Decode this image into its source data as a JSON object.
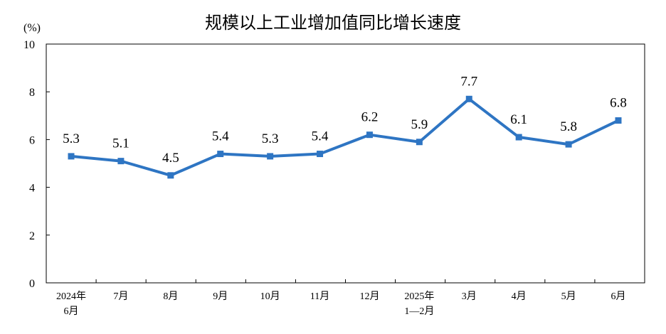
{
  "chart_data": {
    "type": "line",
    "title": "规模以上工业增加值同比增长速度",
    "ylabel": "(%)",
    "ylim": [
      0,
      10
    ],
    "yticks": [
      0,
      2,
      4,
      6,
      8,
      10
    ],
    "categories": [
      [
        "2024年",
        "6月"
      ],
      [
        "7月"
      ],
      [
        "8月"
      ],
      [
        "9月"
      ],
      [
        "10月"
      ],
      [
        "11月"
      ],
      [
        "12月"
      ],
      [
        "2025年",
        "1—2月"
      ],
      [
        "3月"
      ],
      [
        "4月"
      ],
      [
        "5月"
      ],
      [
        "6月"
      ]
    ],
    "series": [
      {
        "values": [
          5.3,
          5.1,
          4.5,
          5.4,
          5.3,
          5.4,
          6.2,
          5.9,
          7.7,
          6.1,
          5.8,
          6.8
        ],
        "labels": [
          "5.3",
          "5.1",
          "4.5",
          "5.4",
          "5.3",
          "5.4",
          "6.2",
          "5.9",
          "7.7",
          "6.1",
          "5.8",
          "6.8"
        ],
        "color": "#2E75C3"
      }
    ],
    "grid": false,
    "legend": "none"
  }
}
